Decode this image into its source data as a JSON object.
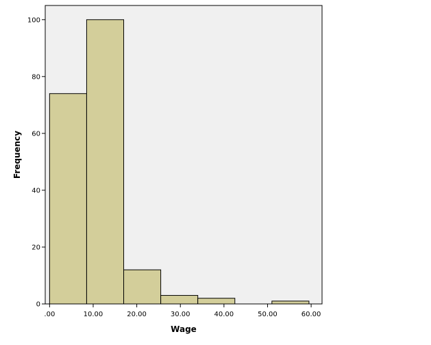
{
  "chart_data": {
    "type": "bar",
    "subtype": "histogram",
    "title": "",
    "xlabel": "Wage",
    "ylabel": "Frequency",
    "bins": [
      {
        "start": 0.0,
        "end": 8.5,
        "count": 74
      },
      {
        "start": 8.5,
        "end": 17.0,
        "count": 100
      },
      {
        "start": 17.0,
        "end": 25.5,
        "count": 12
      },
      {
        "start": 25.5,
        "end": 34.0,
        "count": 3
      },
      {
        "start": 34.0,
        "end": 42.5,
        "count": 2
      },
      {
        "start": 42.5,
        "end": 51.0,
        "count": 0
      },
      {
        "start": 51.0,
        "end": 59.5,
        "count": 1
      }
    ],
    "xticks": [
      0,
      10,
      20,
      30,
      40,
      50,
      60
    ],
    "xtick_labels": [
      ".00",
      "10.00",
      "20.00",
      "30.00",
      "40.00",
      "50.00",
      "60.00"
    ],
    "yticks": [
      0,
      20,
      40,
      60,
      80,
      100
    ],
    "yticks_labels": [
      "0",
      "20",
      "40",
      "60",
      "80",
      "100"
    ],
    "xlim": [
      -1.0,
      62.5
    ],
    "ylim": [
      0,
      105
    ],
    "grid": false,
    "colors": {
      "bar_fill": "#d3ce9a",
      "bar_stroke": "#000000",
      "plot_background": "#f0f0f0",
      "page_background": "#ffffff"
    }
  }
}
